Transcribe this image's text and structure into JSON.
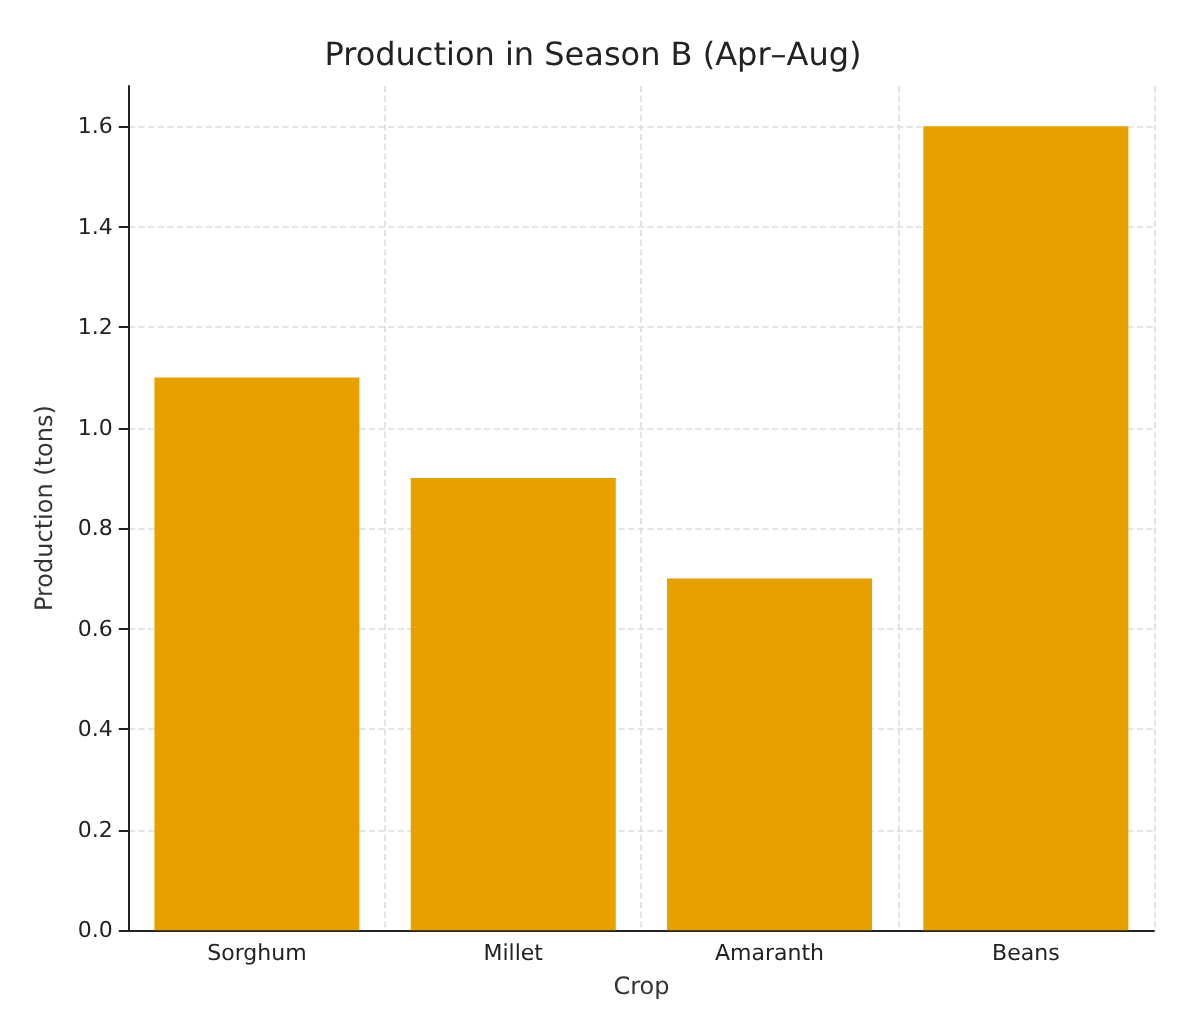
{
  "chart_data": {
    "type": "bar",
    "title": "Production in Season B (Apr–Aug)",
    "xlabel": "Crop",
    "ylabel": "Production (tons)",
    "categories": [
      "Sorghum",
      "Millet",
      "Amaranth",
      "Beans"
    ],
    "values": [
      1.1,
      0.9,
      0.7,
      1.6
    ],
    "color": "#e6a000",
    "ylim": [
      0,
      1.68
    ],
    "yticks": [
      {
        "value": 0,
        "label": "0.0"
      },
      {
        "value": 0.2,
        "label": "0.2"
      },
      {
        "value": 0.4,
        "label": "0.4"
      },
      {
        "value": 0.6,
        "label": "0.6"
      },
      {
        "value": 0.8,
        "label": "0.8"
      },
      {
        "value": 1,
        "label": "1.0"
      },
      {
        "value": 1.2,
        "label": "1.2"
      },
      {
        "value": 1.4,
        "label": "1.4"
      },
      {
        "value": 1.6,
        "label": "1.6"
      }
    ],
    "grid": true
  }
}
